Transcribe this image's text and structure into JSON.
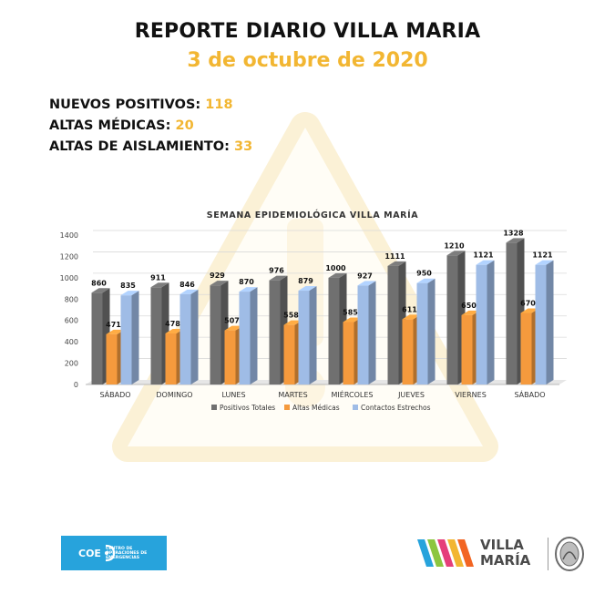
{
  "header": {
    "title": "REPORTE DIARIO VILLA MARIA",
    "date": "3  de octubre de 2020"
  },
  "stats": [
    {
      "label": "NUEVOS POSITIVOS:",
      "value": "118"
    },
    {
      "label": "ALTAS MÉDICAS:",
      "value": "20"
    },
    {
      "label": "ALTAS DE AISLAMIENTO:",
      "value": "33"
    }
  ],
  "chart_data": {
    "type": "bar",
    "title": "SEMANA EPIDEMIOLÓGICA VILLA MARÍA",
    "categories": [
      "SÁBADO",
      "DOMINGO",
      "LUNES",
      "MARTES",
      "MIÉRCOLES",
      "JUEVES",
      "VIERNES",
      "SÁBADO"
    ],
    "series": [
      {
        "name": "Positivos Totales",
        "color": "#707070",
        "values": [
          860,
          911,
          929,
          976,
          1000,
          1111,
          1210,
          1328
        ]
      },
      {
        "name": "Altas Médicas",
        "color": "#f59a3d",
        "values": [
          471,
          478,
          507,
          558,
          585,
          611,
          650,
          670
        ]
      },
      {
        "name": "Contactos Estrechos",
        "color": "#9fbce6",
        "values": [
          835,
          846,
          870,
          879,
          927,
          950,
          1121,
          1121
        ]
      }
    ],
    "ylim": [
      0,
      1400
    ],
    "yticks": [
      0,
      200,
      400,
      600,
      800,
      1000,
      1200,
      1400
    ],
    "grid": true,
    "legend_position": "bottom"
  },
  "footer": {
    "coe_acronym": "COE",
    "coe_name": "CENTRO DE OPERACIONES DE EMERGENCIAS",
    "brand_line1": "VILLA",
    "brand_line2": "MARÍA"
  },
  "colors": {
    "accent": "#f2b632",
    "coe_blue": "#27a3dc"
  }
}
